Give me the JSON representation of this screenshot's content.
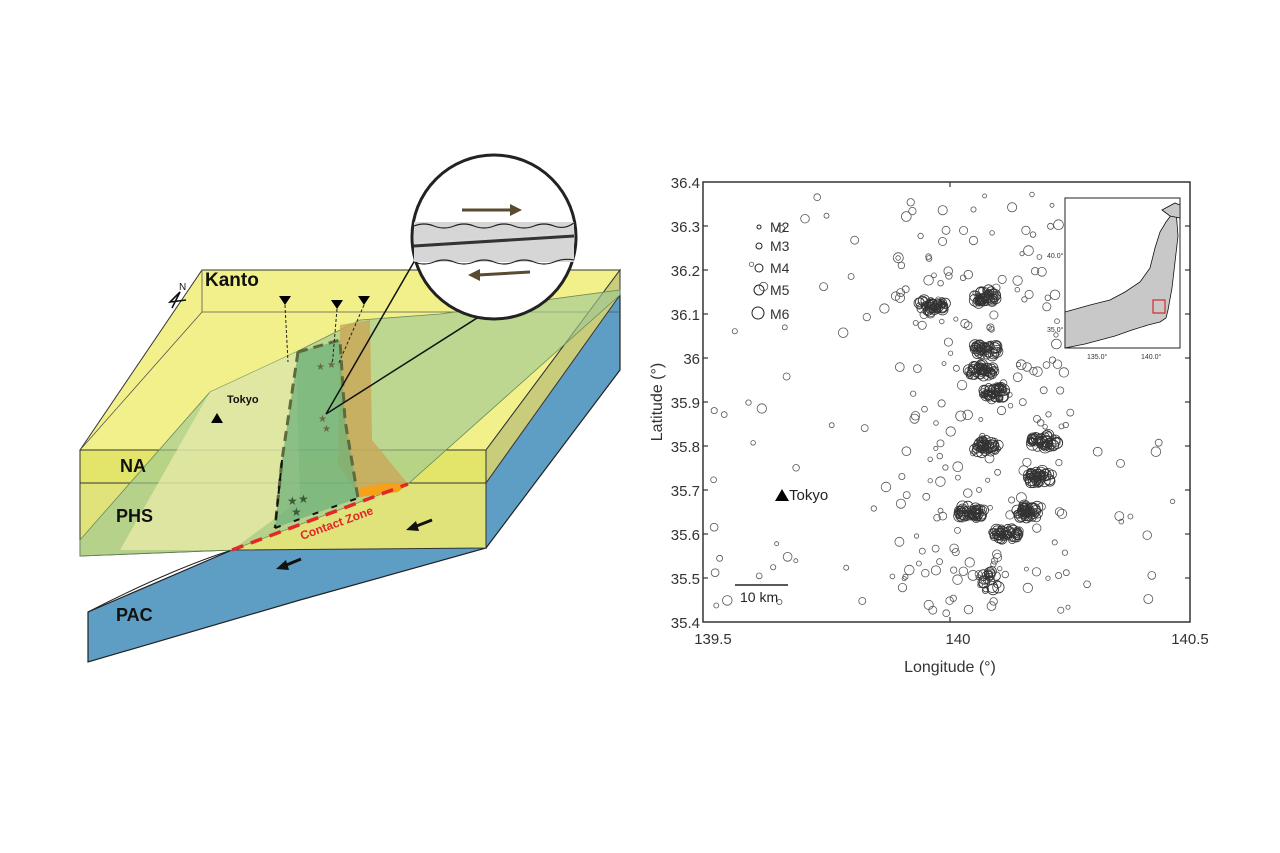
{
  "left_panel": {
    "labels": {
      "kanto": "Kanto",
      "na": "NA",
      "phs": "PHS",
      "pac": "PAC",
      "tokyo": "Tokyo",
      "contact_zone": "Contact Zone",
      "north": "N"
    },
    "colors": {
      "na_plate": "#f2f08a",
      "na_side": "#e3e46a",
      "phs_plate": "#b7d69a",
      "pac_plate": "#5f9ec4",
      "anomaly_green": "#6fb27a",
      "anomaly_brown": "#c9a95b",
      "contact_zone": "#e0272a",
      "orange": "#f7a11b"
    }
  },
  "right_panel": {
    "legend": [
      "M2",
      "M3",
      "M4",
      "M5",
      "M6"
    ],
    "tokyo_label": "Tokyo",
    "scale_bar": "10 km",
    "inset": {
      "xticks": [
        "135.0°",
        "140.0°"
      ],
      "yticks": [
        "40.0°",
        "35.0°"
      ],
      "highlight_color": "#d62728"
    }
  },
  "chart_data": {
    "type": "scatter",
    "title": "",
    "xlabel": "Longitude (°)",
    "ylabel": "Latitude (°)",
    "xlim": [
      139.5,
      140.5
    ],
    "ylim": [
      35.4,
      36.4
    ],
    "xticks": [
      "139.5",
      "140",
      "140.5"
    ],
    "yticks": [
      "35.4",
      "35.5",
      "35.6",
      "35.7",
      "35.8",
      "35.9",
      "36",
      "36.1",
      "36.2",
      "36.3",
      "36.4"
    ],
    "legend": [
      "M2",
      "M3",
      "M4",
      "M5",
      "M6"
    ],
    "annotations": [
      {
        "text": "Tokyo",
        "lon": 139.65,
        "lat": 35.68
      },
      {
        "text": "10 km",
        "type": "scale-bar"
      }
    ],
    "clusters": [
      {
        "lon": 139.97,
        "lat": 36.12,
        "note": "dense cluster"
      },
      {
        "lon": 140.08,
        "lat": 36.14,
        "note": "dense cluster"
      },
      {
        "lon": 140.08,
        "lat": 36.02,
        "note": "dense cluster"
      },
      {
        "lon": 140.07,
        "lat": 35.97,
        "note": "dense cluster"
      },
      {
        "lon": 140.1,
        "lat": 35.92,
        "note": "dense cluster"
      },
      {
        "lon": 140.08,
        "lat": 35.8,
        "note": "dense cluster"
      },
      {
        "lon": 140.2,
        "lat": 35.81,
        "note": "dense cluster"
      },
      {
        "lon": 140.19,
        "lat": 35.73,
        "note": "dense cluster"
      },
      {
        "lon": 140.05,
        "lat": 35.65,
        "note": "dense cluster"
      },
      {
        "lon": 140.12,
        "lat": 35.6,
        "note": "dense cluster"
      },
      {
        "lon": 140.17,
        "lat": 35.65,
        "note": "dense cluster"
      },
      {
        "lon": 140.09,
        "lat": 35.49,
        "note": "sparse cluster"
      }
    ],
    "grid": false
  }
}
